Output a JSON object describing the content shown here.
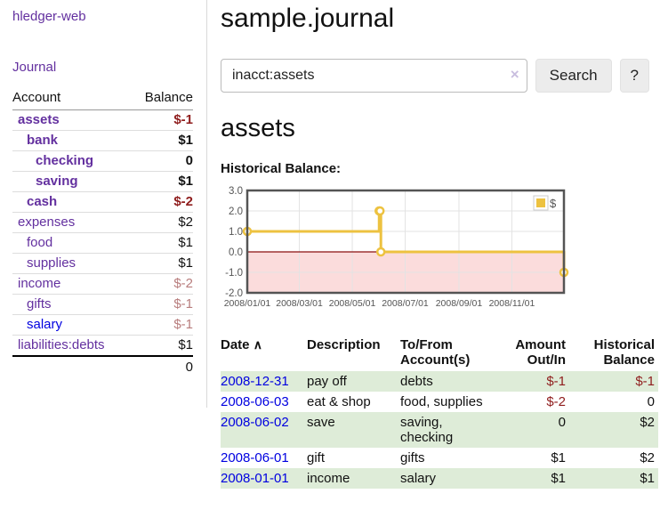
{
  "sidebar": {
    "brand": "hledger-web",
    "journal_label": "Journal",
    "accounts": {
      "headers": {
        "account": "Account",
        "balance": "Balance"
      },
      "rows": [
        {
          "name": "assets",
          "indent": 1,
          "bold": true,
          "blue": false,
          "balance": "$-1",
          "tone": "neg"
        },
        {
          "name": "bank",
          "indent": 2,
          "bold": true,
          "blue": false,
          "balance": "$1",
          "tone": ""
        },
        {
          "name": "checking",
          "indent": 3,
          "bold": true,
          "blue": false,
          "balance": "0",
          "tone": ""
        },
        {
          "name": "saving",
          "indent": 3,
          "bold": true,
          "blue": false,
          "balance": "$1",
          "tone": ""
        },
        {
          "name": "cash",
          "indent": 2,
          "bold": true,
          "blue": false,
          "balance": "$-2",
          "tone": "neg"
        },
        {
          "name": "expenses",
          "indent": 1,
          "bold": false,
          "blue": false,
          "balance": "$2",
          "tone": ""
        },
        {
          "name": "food",
          "indent": 2,
          "bold": false,
          "blue": false,
          "balance": "$1",
          "tone": ""
        },
        {
          "name": "supplies",
          "indent": 2,
          "bold": false,
          "blue": false,
          "balance": "$1",
          "tone": ""
        },
        {
          "name": "income",
          "indent": 1,
          "bold": false,
          "blue": false,
          "balance": "$-2",
          "tone": "negmuted"
        },
        {
          "name": "gifts",
          "indent": 2,
          "bold": false,
          "blue": false,
          "balance": "$-1",
          "tone": "negmuted"
        },
        {
          "name": "salary",
          "indent": 2,
          "bold": false,
          "blue": true,
          "balance": "$-1",
          "tone": "negmuted"
        },
        {
          "name": "liabilities:debts",
          "indent": 1,
          "bold": false,
          "blue": false,
          "balance": "$1",
          "tone": ""
        }
      ],
      "total": "0"
    }
  },
  "header": {
    "title": "sample.journal"
  },
  "search": {
    "value": "inacct:assets",
    "clear_icon": "×",
    "search_label": "Search",
    "help_label": "?"
  },
  "account_page": {
    "heading": "assets",
    "chart_label": "Historical Balance:"
  },
  "chart_data": {
    "type": "line",
    "step": true,
    "title": "Historical Balance:",
    "series": [
      {
        "name": "$",
        "color": "#edc240",
        "points": [
          {
            "date": "2008-01-01",
            "value": 1
          },
          {
            "date": "2008-06-01",
            "value": 2
          },
          {
            "date": "2008-06-02",
            "value": 2
          },
          {
            "date": "2008-06-03",
            "value": 0
          },
          {
            "date": "2008-12-31",
            "value": -1
          }
        ]
      }
    ],
    "x_range": [
      "2008-01-01",
      "2008-12-31"
    ],
    "x_ticks": [
      {
        "date": "2008-01-01",
        "label": "2008/01/01"
      },
      {
        "date": "2008-03-01",
        "label": "2008/03/01"
      },
      {
        "date": "2008-05-01",
        "label": "2008/05/01"
      },
      {
        "date": "2008-07-01",
        "label": "2008/07/01"
      },
      {
        "date": "2008-09-01",
        "label": "2008/09/01"
      },
      {
        "date": "2008-11-01",
        "label": "2008/11/01"
      }
    ],
    "y_ticks": [
      "3.0",
      "2.0",
      "1.0",
      "0.0",
      "-1.0",
      "-2.0"
    ],
    "ylim": [
      -2,
      3
    ],
    "legend": {
      "label": "$",
      "position": "top-right"
    },
    "colors": {
      "negative_region": "#fbdcdc",
      "zero_line": "#8b1010",
      "grid": "#e3e3e3",
      "border": "#545454",
      "text": "#545454"
    }
  },
  "register_table": {
    "headers": {
      "date": "Date",
      "sort_arrow": "∧",
      "description": "Description",
      "accounts_line1": "To/From",
      "accounts_line2": "Account(s)",
      "amount_line1": "Amount",
      "amount_line2": "Out/In",
      "balance_line1": "Historical",
      "balance_line2": "Balance"
    },
    "rows": [
      {
        "date": "2008-12-31",
        "description": "pay off",
        "accounts": [
          "debts"
        ],
        "amount": "$-1",
        "amount_tone": "neg",
        "balance": "$-1",
        "balance_tone": "neg",
        "shaded": true
      },
      {
        "date": "2008-06-03",
        "description": "eat & shop",
        "accounts": [
          "food, supplies"
        ],
        "amount": "$-2",
        "amount_tone": "neg",
        "balance": "0",
        "balance_tone": "",
        "shaded": false
      },
      {
        "date": "2008-06-02",
        "description": "save",
        "accounts": [
          "saving,",
          "checking"
        ],
        "amount": "0",
        "amount_tone": "",
        "balance": "$2",
        "balance_tone": "",
        "shaded": true
      },
      {
        "date": "2008-06-01",
        "description": "gift",
        "accounts": [
          "gifts"
        ],
        "amount": "$1",
        "amount_tone": "",
        "balance": "$2",
        "balance_tone": "",
        "shaded": false
      },
      {
        "date": "2008-01-01",
        "description": "income",
        "accounts": [
          "salary"
        ],
        "amount": "$1",
        "amount_tone": "",
        "balance": "$1",
        "balance_tone": "",
        "shaded": true
      }
    ]
  }
}
